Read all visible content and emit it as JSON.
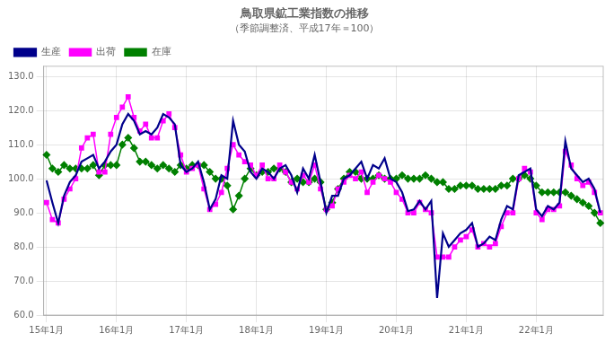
{
  "chart_data": {
    "type": "line",
    "title": "鳥取県鉱工業指数の推移",
    "subtitle": "（季節調整済、平成17年＝100）",
    "categories": [
      "15年1月",
      null,
      null,
      null,
      null,
      null,
      null,
      null,
      null,
      null,
      null,
      null,
      "16年1月",
      null,
      null,
      null,
      null,
      null,
      null,
      null,
      null,
      null,
      null,
      null,
      "17年1月",
      null,
      null,
      null,
      null,
      null,
      null,
      null,
      null,
      null,
      null,
      null,
      "18年1月",
      null,
      null,
      null,
      null,
      null,
      null,
      null,
      null,
      null,
      null,
      null,
      "19年1月",
      null,
      null,
      null,
      null,
      null,
      null,
      null,
      null,
      null,
      null,
      null,
      "20年1月",
      null,
      null,
      null,
      null,
      null,
      null,
      null,
      null,
      null,
      null,
      null,
      "21年1月",
      null,
      null,
      null,
      null,
      null,
      null,
      null,
      null,
      null,
      null,
      null,
      "22年1月",
      null,
      null,
      null,
      null,
      null,
      null,
      null,
      null,
      null,
      null,
      null
    ],
    "series": [
      {
        "name": "生産",
        "color": "#00008B",
        "marker": "none",
        "values": [
          99.5,
          93.0,
          87.0,
          95.0,
          99.0,
          101.0,
          105.0,
          106.0,
          107.0,
          103.0,
          105.0,
          108.0,
          110.0,
          116.0,
          119.0,
          117.0,
          113.0,
          114.0,
          113.0,
          115.0,
          119.0,
          118.0,
          116.0,
          104.0,
          102.0,
          103.0,
          105.0,
          99.0,
          91.0,
          94.0,
          101.0,
          100.0,
          117.0,
          110.0,
          108.0,
          102.0,
          100.0,
          103.0,
          102.0,
          100.0,
          103.0,
          104.0,
          101.0,
          96.0,
          103.0,
          100.0,
          107.0,
          99.0,
          90.0,
          95.0,
          95.0,
          100.0,
          101.0,
          103.0,
          105.0,
          100.0,
          104.0,
          103.0,
          106.0,
          100.0,
          99.0,
          96.0,
          90.5,
          91.0,
          93.5,
          91.0,
          93.5,
          65.0,
          84.0,
          80.0,
          82.0,
          84.0,
          85.0,
          87.0,
          80.0,
          81.0,
          83.0,
          82.0,
          88.0,
          92.0,
          91.0,
          101.0,
          102.0,
          103.0,
          91.0,
          89.0,
          92.0,
          91.0,
          93.0,
          111.0,
          103.0,
          101.0,
          99.0,
          100.0,
          97.0,
          90.0
        ]
      },
      {
        "name": "出荷",
        "color": "#FF00FF",
        "marker": "square",
        "values": [
          93.0,
          88.0,
          87.0,
          94.0,
          97.0,
          100.0,
          109.0,
          112.0,
          113.0,
          102.0,
          102.0,
          113.0,
          118.0,
          121.0,
          124.0,
          118.0,
          114.0,
          116.0,
          112.0,
          112.0,
          117.0,
          119.0,
          115.0,
          107.0,
          102.0,
          103.0,
          104.0,
          97.0,
          91.0,
          92.5,
          96.0,
          103.0,
          110.0,
          107.0,
          105.0,
          104.0,
          101.0,
          104.0,
          100.0,
          100.0,
          104.0,
          102.0,
          99.0,
          97.0,
          101.0,
          99.0,
          104.0,
          97.0,
          91.0,
          92.0,
          97.0,
          99.0,
          101.0,
          100.0,
          102.0,
          96.0,
          99.0,
          101.0,
          100.0,
          99.0,
          96.0,
          94.0,
          90.0,
          90.0,
          93.0,
          91.0,
          90.0,
          77.0,
          77.0,
          77.0,
          80.0,
          82.0,
          83.0,
          85.0,
          80.0,
          81.0,
          80.0,
          81.0,
          86.0,
          90.0,
          90.0,
          100.0,
          103.0,
          102.0,
          90.0,
          88.0,
          91.0,
          91.0,
          92.0,
          108.0,
          104.0,
          100.0,
          98.0,
          99.0,
          96.0,
          90.0
        ]
      },
      {
        "name": "在庫",
        "color": "#008000",
        "marker": "diamond",
        "values": [
          107.0,
          103.0,
          102.0,
          104.0,
          103.0,
          103.0,
          103.0,
          103.0,
          104.0,
          101.0,
          104.0,
          104.0,
          104.0,
          110.0,
          112.0,
          109.0,
          105.0,
          105.0,
          104.0,
          103.0,
          104.0,
          103.0,
          102.0,
          104.0,
          103.0,
          104.0,
          104.0,
          104.0,
          102.0,
          100.0,
          100.0,
          98.0,
          91.0,
          95.0,
          100.0,
          103.0,
          101.0,
          102.0,
          102.0,
          103.0,
          103.0,
          102.0,
          99.0,
          100.0,
          99.0,
          99.0,
          100.0,
          99.0,
          91.0,
          93.0,
          97.0,
          100.0,
          102.0,
          102.0,
          100.0,
          100.0,
          100.0,
          101.0,
          100.0,
          100.0,
          100.0,
          101.0,
          100.0,
          100.0,
          100.0,
          101.0,
          100.0,
          99.0,
          99.0,
          97.0,
          97.0,
          98.0,
          98.0,
          98.0,
          97.0,
          97.0,
          97.0,
          97.0,
          98.0,
          98.0,
          100.0,
          100.0,
          101.0,
          100.0,
          98.0,
          96.0,
          96.0,
          96.0,
          96.0,
          96.0,
          95.0,
          94.0,
          93.0,
          92.0,
          90.0,
          87.0
        ]
      }
    ],
    "ylim": [
      60.0,
      133.0
    ],
    "yticks": [
      {
        "value": 60,
        "label": "60.0"
      },
      {
        "value": 70,
        "label": "70.0"
      },
      {
        "value": 80,
        "label": "80.0"
      },
      {
        "value": 90,
        "label": "90.0"
      },
      {
        "value": 100,
        "label": "100.0"
      },
      {
        "value": 110,
        "label": "110.0"
      },
      {
        "value": 120,
        "label": "120.0"
      },
      {
        "value": 130,
        "label": "130.0"
      }
    ],
    "grid": true,
    "legend": "upper left"
  }
}
